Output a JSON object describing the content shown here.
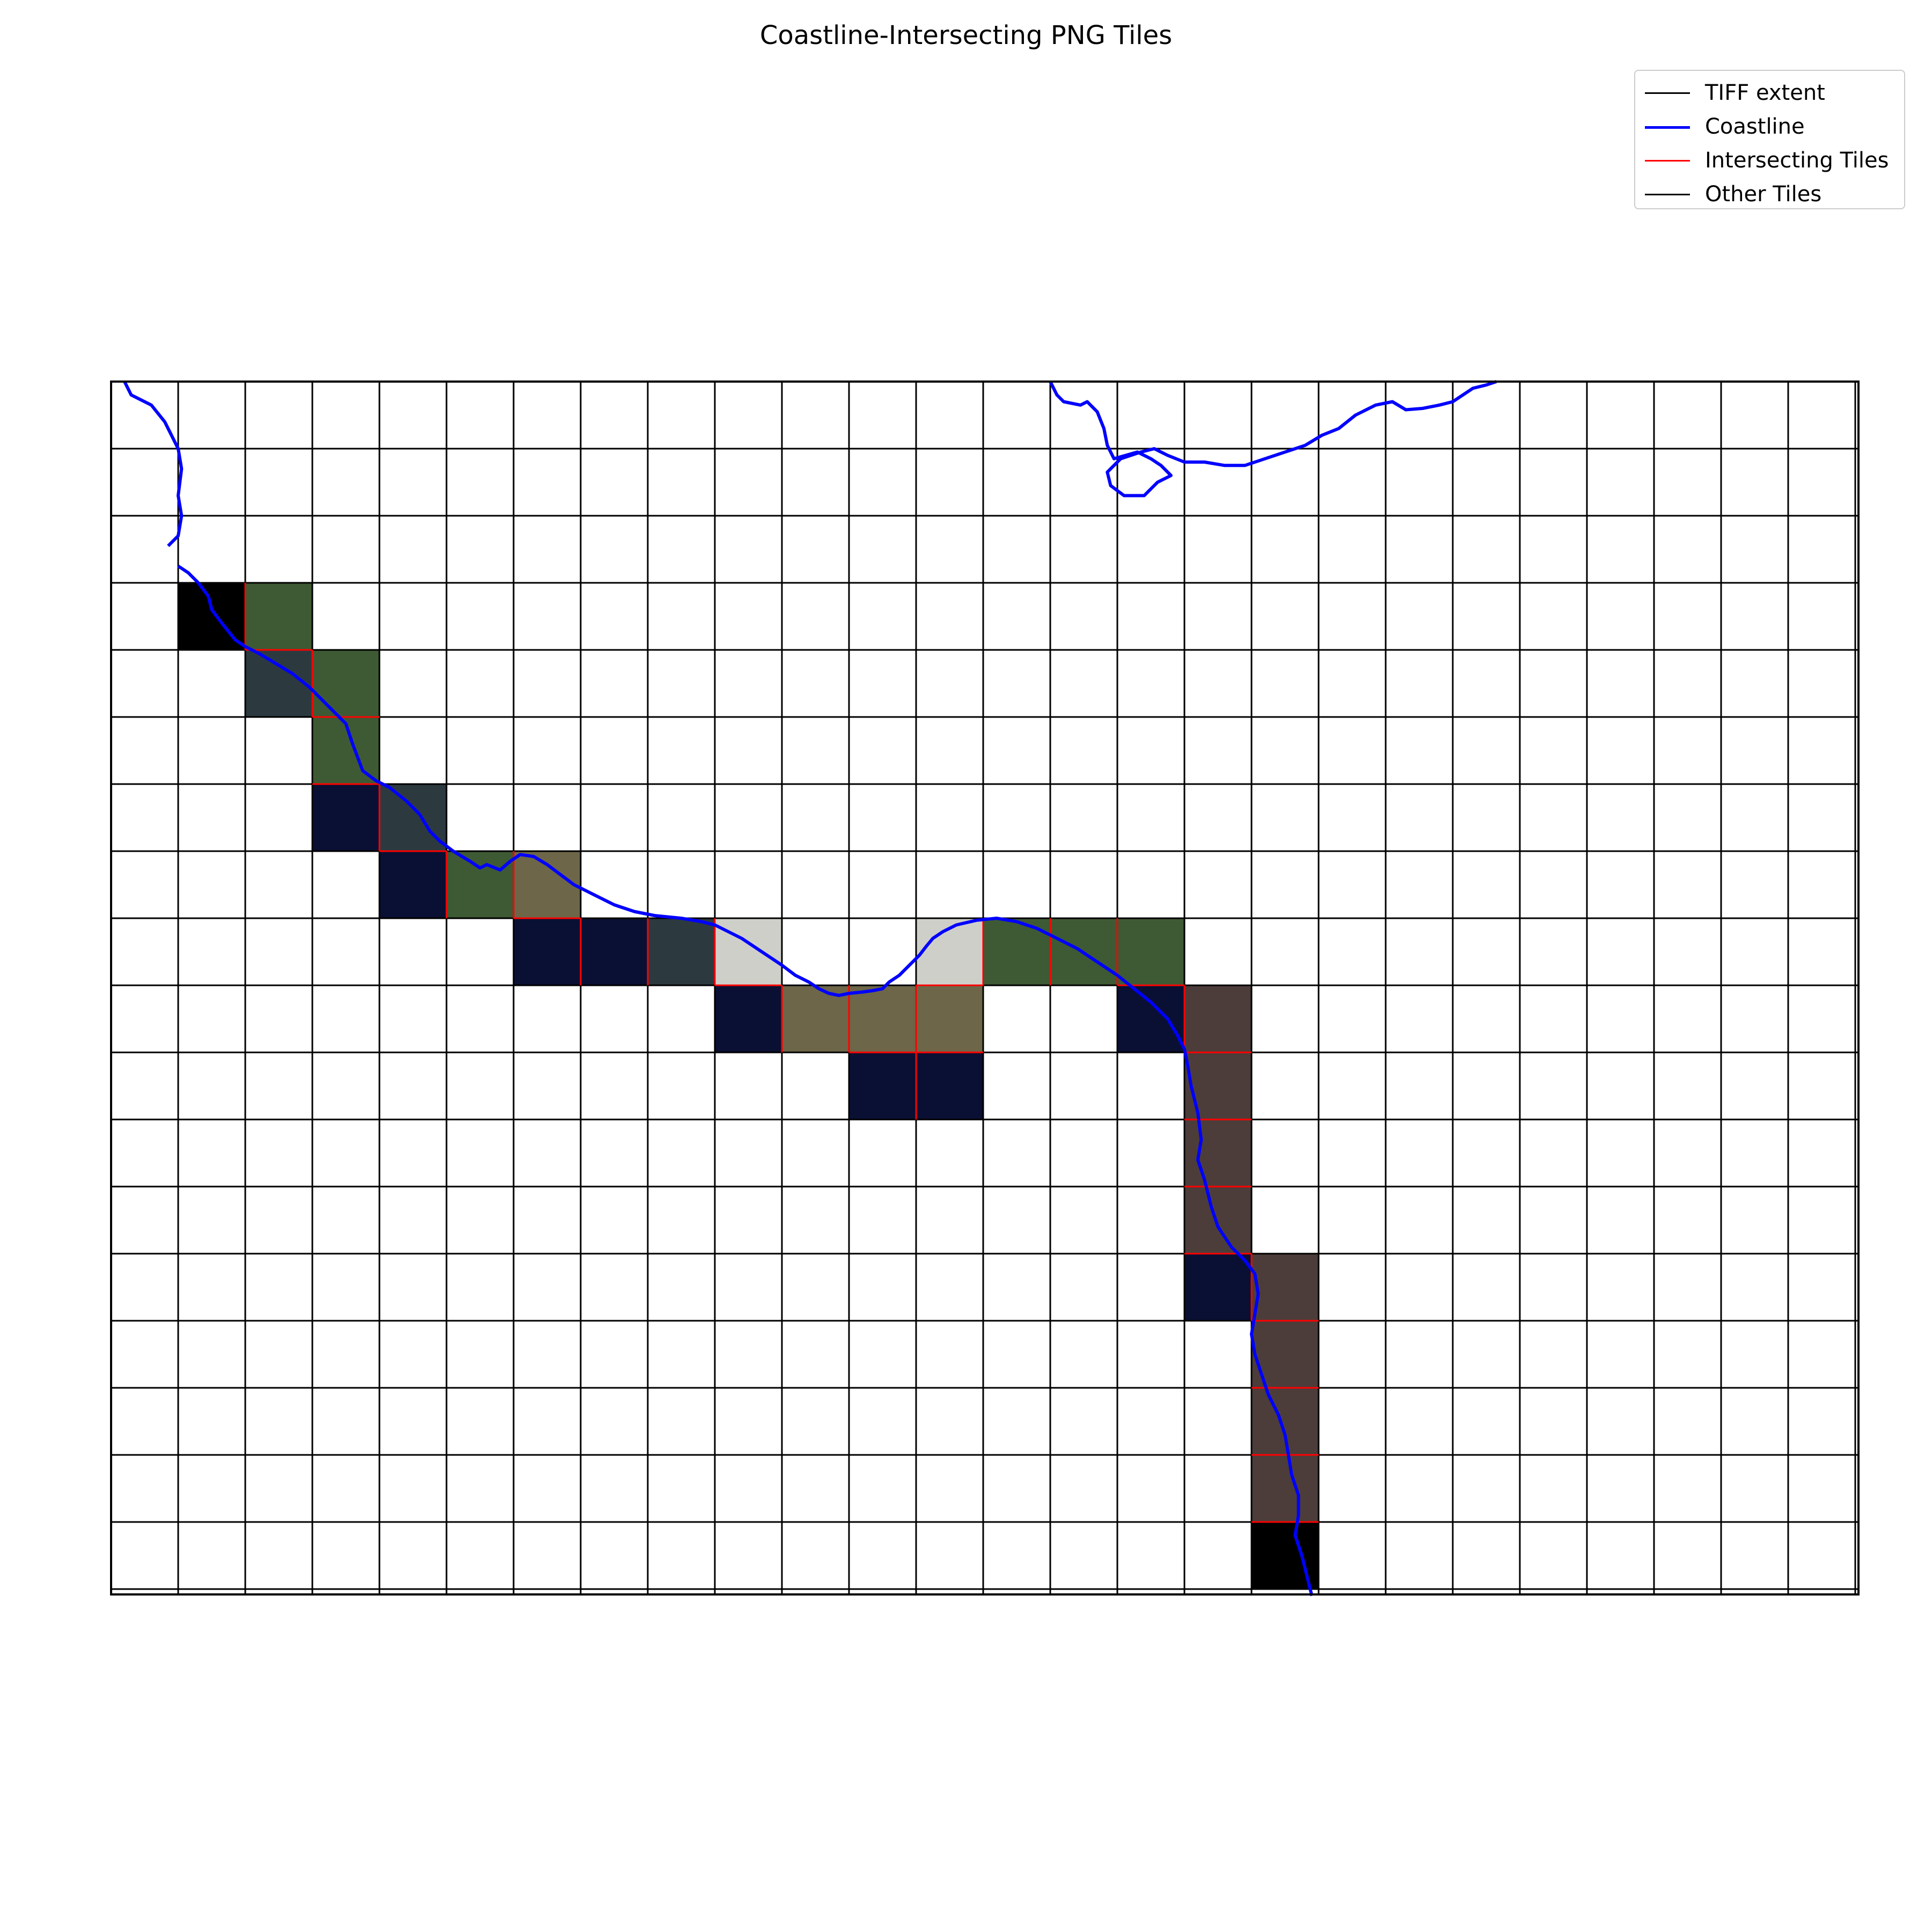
{
  "chart_data": {
    "type": "map-grid",
    "title": "Coastline-Intersecting PNG Tiles",
    "grid": {
      "columns": 26,
      "rows": 18
    },
    "legend": {
      "position": "top-right",
      "entries": [
        {
          "label": "TIFF extent",
          "color": "#000000"
        },
        {
          "label": "Coastline",
          "color": "#0000ff"
        },
        {
          "label": "Intersecting Tiles",
          "color": "#ff0000"
        },
        {
          "label": "Other Tiles",
          "color": "#000000"
        }
      ]
    },
    "intersecting_tiles": [
      {
        "col": 1,
        "row": 3,
        "type": "black"
      },
      {
        "col": 2,
        "row": 3,
        "type": "land"
      },
      {
        "col": 2,
        "row": 4,
        "type": "mixed"
      },
      {
        "col": 3,
        "row": 4,
        "type": "land"
      },
      {
        "col": 3,
        "row": 5,
        "type": "land"
      },
      {
        "col": 3,
        "row": 6,
        "type": "water"
      },
      {
        "col": 4,
        "row": 6,
        "type": "mixed"
      },
      {
        "col": 4,
        "row": 7,
        "type": "water"
      },
      {
        "col": 5,
        "row": 7,
        "type": "land"
      },
      {
        "col": 6,
        "row": 7,
        "type": "brown"
      },
      {
        "col": 6,
        "row": 8,
        "type": "water"
      },
      {
        "col": 7,
        "row": 8,
        "type": "water"
      },
      {
        "col": 8,
        "row": 8,
        "type": "mixed"
      },
      {
        "col": 9,
        "row": 8,
        "type": "cloud"
      },
      {
        "col": 12,
        "row": 8,
        "type": "cloud"
      },
      {
        "col": 13,
        "row": 8,
        "type": "land"
      },
      {
        "col": 14,
        "row": 8,
        "type": "land"
      },
      {
        "col": 15,
        "row": 8,
        "type": "land"
      },
      {
        "col": 9,
        "row": 9,
        "type": "water"
      },
      {
        "col": 10,
        "row": 9,
        "type": "brown"
      },
      {
        "col": 11,
        "row": 9,
        "type": "brown"
      },
      {
        "col": 12,
        "row": 9,
        "type": "brown"
      },
      {
        "col": 15,
        "row": 9,
        "type": "water"
      },
      {
        "col": 16,
        "row": 9,
        "type": "urban"
      },
      {
        "col": 11,
        "row": 10,
        "type": "water"
      },
      {
        "col": 12,
        "row": 10,
        "type": "water"
      },
      {
        "col": 16,
        "row": 10,
        "type": "urban"
      },
      {
        "col": 16,
        "row": 11,
        "type": "urban"
      },
      {
        "col": 16,
        "row": 12,
        "type": "urban"
      },
      {
        "col": 16,
        "row": 13,
        "type": "water"
      },
      {
        "col": 17,
        "row": 13,
        "type": "urban"
      },
      {
        "col": 17,
        "row": 14,
        "type": "urban"
      },
      {
        "col": 17,
        "row": 15,
        "type": "urban"
      },
      {
        "col": 17,
        "row": 16,
        "type": "urban"
      },
      {
        "col": 17,
        "row": 17,
        "type": "black"
      }
    ],
    "tile_colors": {
      "water": "#0a1033",
      "land": "#3e5a34",
      "mixed": "#2c3a40",
      "brown": "#6d6648",
      "cloud": "#cfcfca",
      "urban": "#4c3d3a",
      "black": "#000000"
    },
    "coastline_segments": [
      {
        "name": "north-west",
        "points": [
          [
            0.2,
            0
          ],
          [
            0.3,
            0.2
          ],
          [
            0.6,
            0.35
          ],
          [
            0.8,
            0.6
          ],
          [
            1.0,
            1.0
          ],
          [
            1.05,
            1.3
          ],
          [
            1.0,
            1.7
          ],
          [
            1.05,
            2.0
          ],
          [
            1.0,
            2.3
          ],
          [
            0.85,
            2.45
          ]
        ]
      },
      {
        "name": "main",
        "points": [
          [
            1.0,
            2.75
          ],
          [
            1.15,
            2.85
          ],
          [
            1.3,
            3.0
          ],
          [
            1.45,
            3.2
          ],
          [
            1.5,
            3.4
          ],
          [
            1.65,
            3.6
          ],
          [
            1.85,
            3.85
          ],
          [
            2.0,
            3.95
          ],
          [
            2.2,
            4.05
          ],
          [
            2.45,
            4.2
          ],
          [
            2.7,
            4.35
          ],
          [
            2.95,
            4.55
          ],
          [
            3.15,
            4.75
          ],
          [
            3.3,
            4.9
          ],
          [
            3.5,
            5.1
          ],
          [
            3.6,
            5.4
          ],
          [
            3.75,
            5.8
          ],
          [
            3.95,
            5.95
          ],
          [
            4.15,
            6.05
          ],
          [
            4.4,
            6.25
          ],
          [
            4.6,
            6.45
          ],
          [
            4.75,
            6.7
          ],
          [
            4.9,
            6.85
          ],
          [
            5.1,
            7.0
          ],
          [
            5.35,
            7.15
          ],
          [
            5.5,
            7.25
          ],
          [
            5.6,
            7.2
          ],
          [
            5.8,
            7.28
          ],
          [
            5.95,
            7.15
          ],
          [
            6.1,
            7.05
          ],
          [
            6.3,
            7.08
          ],
          [
            6.5,
            7.2
          ],
          [
            6.7,
            7.35
          ],
          [
            6.9,
            7.5
          ],
          [
            7.2,
            7.65
          ],
          [
            7.5,
            7.8
          ],
          [
            7.8,
            7.9
          ],
          [
            8.1,
            7.96
          ],
          [
            8.5,
            8.0
          ],
          [
            8.8,
            8.05
          ],
          [
            9.0,
            8.1
          ],
          [
            9.2,
            8.2
          ],
          [
            9.4,
            8.3
          ],
          [
            9.55,
            8.4
          ],
          [
            9.7,
            8.5
          ],
          [
            9.85,
            8.6
          ],
          [
            10.0,
            8.7
          ],
          [
            10.2,
            8.85
          ],
          [
            10.4,
            8.95
          ],
          [
            10.55,
            9.05
          ],
          [
            10.7,
            9.12
          ],
          [
            10.85,
            9.15
          ],
          [
            11.0,
            9.12
          ],
          [
            11.2,
            9.1
          ],
          [
            11.35,
            9.08
          ],
          [
            11.5,
            9.05
          ],
          [
            11.6,
            8.95
          ],
          [
            11.75,
            8.85
          ],
          [
            11.9,
            8.7
          ],
          [
            12.05,
            8.55
          ],
          [
            12.15,
            8.42
          ],
          [
            12.25,
            8.3
          ],
          [
            12.4,
            8.2
          ],
          [
            12.6,
            8.1
          ],
          [
            12.9,
            8.03
          ],
          [
            13.2,
            8.0
          ],
          [
            13.5,
            8.05
          ],
          [
            13.8,
            8.15
          ],
          [
            14.1,
            8.3
          ],
          [
            14.4,
            8.45
          ],
          [
            14.7,
            8.65
          ],
          [
            15.0,
            8.85
          ],
          [
            15.25,
            9.05
          ],
          [
            15.5,
            9.25
          ],
          [
            15.75,
            9.5
          ],
          [
            15.9,
            9.75
          ],
          [
            16.0,
            9.95
          ],
          [
            16.05,
            10.2
          ],
          [
            16.1,
            10.5
          ],
          [
            16.2,
            10.9
          ],
          [
            16.25,
            11.3
          ],
          [
            16.2,
            11.6
          ],
          [
            16.3,
            11.9
          ],
          [
            16.4,
            12.3
          ],
          [
            16.5,
            12.6
          ],
          [
            16.7,
            12.9
          ],
          [
            16.9,
            13.1
          ],
          [
            17.05,
            13.3
          ],
          [
            17.1,
            13.6
          ],
          [
            17.05,
            13.9
          ],
          [
            17.0,
            14.2
          ],
          [
            17.05,
            14.5
          ],
          [
            17.15,
            14.8
          ],
          [
            17.25,
            15.1
          ],
          [
            17.4,
            15.4
          ],
          [
            17.5,
            15.7
          ],
          [
            17.55,
            16.0
          ],
          [
            17.6,
            16.3
          ],
          [
            17.7,
            16.6
          ],
          [
            17.7,
            16.9
          ],
          [
            17.65,
            17.2
          ],
          [
            17.75,
            17.5
          ],
          [
            17.8,
            17.7
          ],
          [
            17.9,
            18.1
          ]
        ]
      },
      {
        "name": "north-east",
        "points": [
          [
            14.0,
            0
          ],
          [
            14.1,
            0.2
          ],
          [
            14.2,
            0.3
          ],
          [
            14.45,
            0.35
          ],
          [
            14.55,
            0.3
          ],
          [
            14.7,
            0.45
          ],
          [
            14.8,
            0.7
          ],
          [
            14.85,
            0.95
          ],
          [
            14.95,
            1.15
          ],
          [
            15.3,
            1.05
          ],
          [
            15.5,
            1.15
          ],
          [
            15.65,
            1.25
          ],
          [
            15.8,
            1.4
          ],
          [
            15.6,
            1.5
          ],
          [
            15.4,
            1.7
          ],
          [
            15.1,
            1.7
          ],
          [
            14.9,
            1.55
          ],
          [
            14.85,
            1.35
          ],
          [
            15.05,
            1.15
          ],
          [
            15.35,
            1.05
          ],
          [
            15.55,
            1.0
          ],
          [
            15.75,
            1.1
          ],
          [
            16.0,
            1.2
          ],
          [
            16.3,
            1.2
          ],
          [
            16.6,
            1.25
          ],
          [
            16.9,
            1.25
          ],
          [
            17.2,
            1.15
          ],
          [
            17.5,
            1.05
          ],
          [
            17.8,
            0.95
          ],
          [
            18.05,
            0.8
          ],
          [
            18.3,
            0.7
          ],
          [
            18.55,
            0.5
          ],
          [
            18.85,
            0.35
          ],
          [
            19.1,
            0.3
          ],
          [
            19.3,
            0.42
          ],
          [
            19.55,
            0.4
          ],
          [
            19.8,
            0.35
          ],
          [
            20.0,
            0.3
          ],
          [
            20.15,
            0.2
          ],
          [
            20.3,
            0.1
          ],
          [
            20.5,
            0.05
          ],
          [
            20.65,
            0.0
          ]
        ]
      }
    ]
  }
}
